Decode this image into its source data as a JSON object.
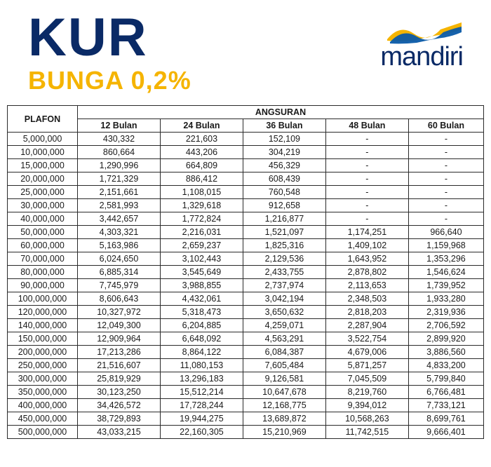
{
  "header": {
    "title": "KUR",
    "subtitle": "BUNGA 0,2%",
    "brand": "mandiri",
    "title_color": "#0a2a66",
    "subtitle_color": "#f5b400",
    "brand_color": "#0a2a66",
    "ribbon_colors": [
      "#f5b400",
      "#0a5aa8"
    ]
  },
  "table": {
    "type": "table",
    "plafon_header": "PLAFON",
    "angsuran_header": "ANGSURAN",
    "tenor_labels": [
      "12 Bulan",
      "24 Bulan",
      "36 Bulan",
      "48 Bulan",
      "60 Bulan"
    ],
    "rows": [
      {
        "plafon": "5,000,000",
        "v": [
          "430,332",
          "221,603",
          "152,109",
          "-",
          "-"
        ]
      },
      {
        "plafon": "10,000,000",
        "v": [
          "860,664",
          "443,206",
          "304,219",
          "-",
          "-"
        ]
      },
      {
        "plafon": "15,000,000",
        "v": [
          "1,290,996",
          "664,809",
          "456,329",
          "-",
          "-"
        ]
      },
      {
        "plafon": "20,000,000",
        "v": [
          "1,721,329",
          "886,412",
          "608,439",
          "-",
          "-"
        ]
      },
      {
        "plafon": "25,000,000",
        "v": [
          "2,151,661",
          "1,108,015",
          "760,548",
          "-",
          "-"
        ]
      },
      {
        "plafon": "30,000,000",
        "v": [
          "2,581,993",
          "1,329,618",
          "912,658",
          "-",
          "-"
        ]
      },
      {
        "plafon": "40,000,000",
        "v": [
          "3,442,657",
          "1,772,824",
          "1,216,877",
          "-",
          "-"
        ]
      },
      {
        "plafon": "50,000,000",
        "v": [
          "4,303,321",
          "2,216,031",
          "1,521,097",
          "1,174,251",
          "966,640"
        ]
      },
      {
        "plafon": "60,000,000",
        "v": [
          "5,163,986",
          "2,659,237",
          "1,825,316",
          "1,409,102",
          "1,159,968"
        ]
      },
      {
        "plafon": "70,000,000",
        "v": [
          "6,024,650",
          "3,102,443",
          "2,129,536",
          "1,643,952",
          "1,353,296"
        ]
      },
      {
        "plafon": "80,000,000",
        "v": [
          "6,885,314",
          "3,545,649",
          "2,433,755",
          "2,878,802",
          "1,546,624"
        ]
      },
      {
        "plafon": "90,000,000",
        "v": [
          "7,745,979",
          "3,988,855",
          "2,737,974",
          "2,113,653",
          "1,739,952"
        ]
      },
      {
        "plafon": "100,000,000",
        "v": [
          "8,606,643",
          "4,432,061",
          "3,042,194",
          "2,348,503",
          "1,933,280"
        ]
      },
      {
        "plafon": "120,000,000",
        "v": [
          "10,327,972",
          "5,318,473",
          "3,650,632",
          "2,818,203",
          "2,319,936"
        ]
      },
      {
        "plafon": "140,000,000",
        "v": [
          "12,049,300",
          "6,204,885",
          "4,259,071",
          "2,287,904",
          "2,706,592"
        ]
      },
      {
        "plafon": "150,000,000",
        "v": [
          "12,909,964",
          "6,648,092",
          "4,563,291",
          "3,522,754",
          "2,899,920"
        ]
      },
      {
        "plafon": "200,000,000",
        "v": [
          "17,213,286",
          "8,864,122",
          "6,084,387",
          "4,679,006",
          "3,886,560"
        ]
      },
      {
        "plafon": "250,000,000",
        "v": [
          "21,516,607",
          "11,080,153",
          "7,605,484",
          "5,871,257",
          "4,833,200"
        ]
      },
      {
        "plafon": "300,000,000",
        "v": [
          "25,819,929",
          "13,296,183",
          "9,126,581",
          "7,045,509",
          "5,799,840"
        ]
      },
      {
        "plafon": "350,000,000",
        "v": [
          "30,123,250",
          "15,512,214",
          "10,647,678",
          "8,219,760",
          "6,766,481"
        ]
      },
      {
        "plafon": "400,000,000",
        "v": [
          "34,426,572",
          "17,728,244",
          "12,168,775",
          "9,394,012",
          "7,733,121"
        ]
      },
      {
        "plafon": "450,000,000",
        "v": [
          "38,729,893",
          "19,944,275",
          "13,689,872",
          "10,568,263",
          "8,699,761"
        ]
      },
      {
        "plafon": "500,000,000",
        "v": [
          "43,033,215",
          "22,160,305",
          "15,210,969",
          "11,742,515",
          "9,666,401"
        ]
      }
    ],
    "border_color": "#2a2a2a",
    "bg_color": "#ffffff",
    "font_size": 12.5
  }
}
